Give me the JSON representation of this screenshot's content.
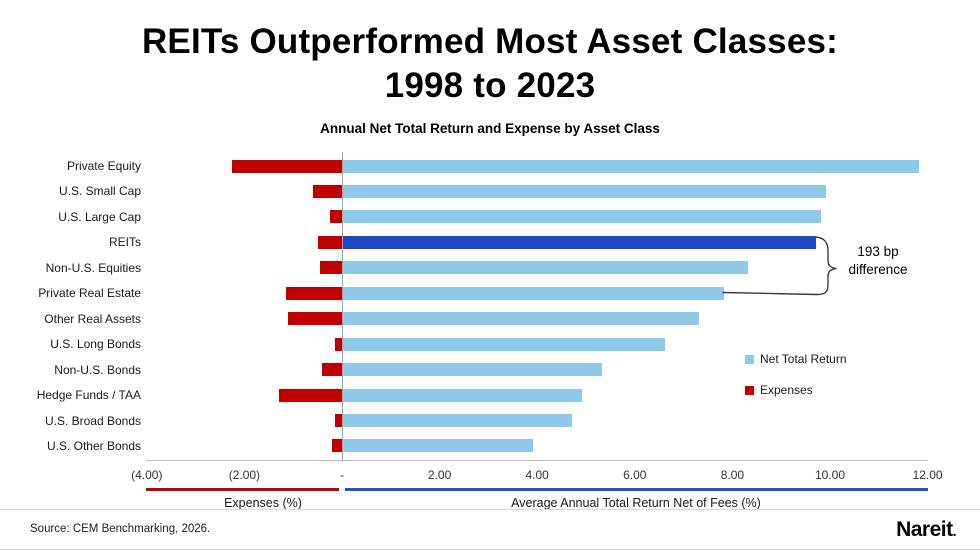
{
  "header": {
    "title_line1": "REITs Outperformed Most Asset Classes:",
    "title_line2": "1998 to 2023",
    "subtitle": "Annual Net Total Return and Expense by Asset Class"
  },
  "chart_data": {
    "type": "bar",
    "orientation": "horizontal",
    "title": "Annual Net Total Return and Expense by Asset Class",
    "categories": [
      "Private Equity",
      "U.S. Small Cap",
      "U.S. Large Cap",
      "REITs",
      "Non-U.S. Equities",
      "Private Real Estate",
      "Other Real Assets",
      "U.S. Long Bonds",
      "Non-U.S. Bonds",
      "Hedge Funds / TAA",
      "U.S. Broad Bonds",
      "U.S. Other Bonds"
    ],
    "series": [
      {
        "name": "Net Total Return",
        "direction": "right",
        "color": "#8fc8e9",
        "values": [
          11.8,
          9.9,
          9.8,
          9.7,
          8.3,
          7.8,
          7.3,
          6.6,
          5.3,
          4.9,
          4.7,
          3.9
        ]
      },
      {
        "name": "Expenses",
        "direction": "left",
        "color": "#c00000",
        "values": [
          2.25,
          0.6,
          0.25,
          0.5,
          0.45,
          1.15,
          1.1,
          0.15,
          0.4,
          1.3,
          0.15,
          0.2
        ]
      }
    ],
    "highlight": {
      "category": "REITs",
      "index": 3,
      "color": "#1d49c4"
    },
    "xlim": [
      -4,
      12
    ],
    "ticks": [
      {
        "label": "(4.00)",
        "value": -4
      },
      {
        "label": "(2.00)",
        "value": -2
      },
      {
        "label": "-",
        "value": 0
      },
      {
        "label": "2.00",
        "value": 2
      },
      {
        "label": "4.00",
        "value": 4
      },
      {
        "label": "6.00",
        "value": 6
      },
      {
        "label": "8.00",
        "value": 8
      },
      {
        "label": "10.00",
        "value": 10
      },
      {
        "label": "12.00",
        "value": 12
      }
    ],
    "legend": [
      {
        "label": "Net Total Return",
        "color": "#8fc8e9"
      },
      {
        "label": "Expenses",
        "color": "#c00000"
      }
    ],
    "legend_position": "right",
    "grid": false,
    "axis_captions": {
      "left": "Expenses (%)",
      "right": "Average Annual Total Return Net of Fees (%)"
    },
    "annotation": {
      "line1": "193 bp",
      "line2": "difference",
      "from_category": "REITs",
      "to_category": "Private Real Estate"
    }
  },
  "colors": {
    "net_total_return": "#8fc8e9",
    "reits_highlight": "#1d49c4",
    "expenses": "#c00000",
    "return_underline": "#2352c8",
    "expense_underline": "#c00000"
  },
  "footer": {
    "source": "Source: CEM Benchmarking, 2026.",
    "logo_text": "Nareit",
    "logo_mark": "."
  }
}
